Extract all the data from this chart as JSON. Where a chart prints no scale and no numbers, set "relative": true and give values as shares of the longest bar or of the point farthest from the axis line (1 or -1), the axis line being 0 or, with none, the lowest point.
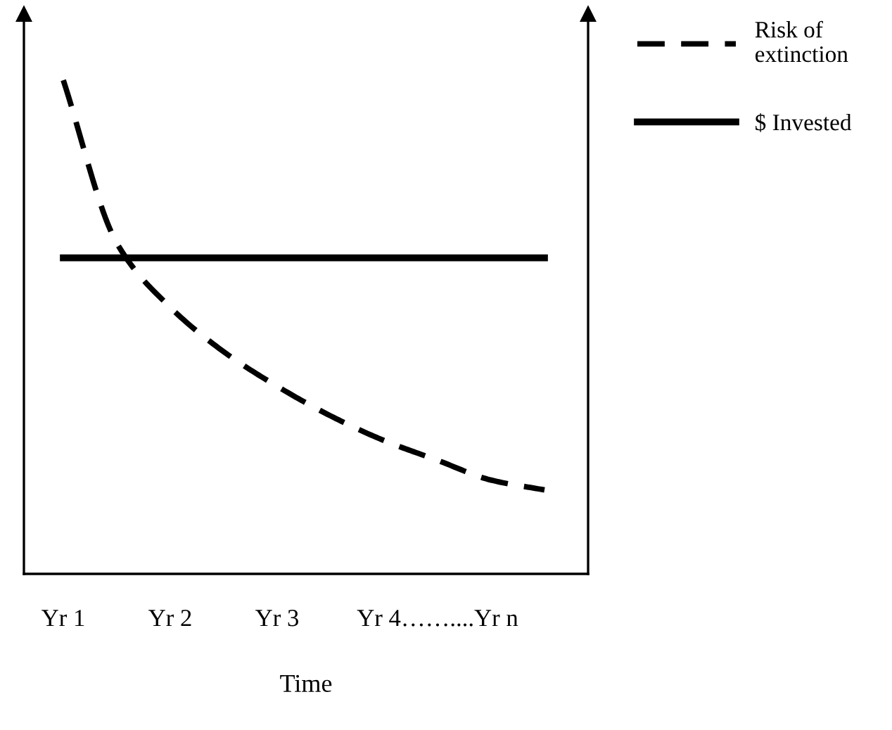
{
  "chart_data": {
    "type": "line",
    "relative": true,
    "xlabel": "Time",
    "legend": "top right",
    "grid": false,
    "marker": "none",
    "categories": [
      "Yr 1",
      null,
      "Yr 2",
      null,
      "Yr 3",
      null,
      null,
      "Yr 4……....Yr n",
      null,
      null
    ],
    "series": [
      {
        "name": "Risk of\nextinction",
        "color": "#000000",
        "line_style": "dashed",
        "values": [
          1,
          0.67,
          0.54,
          0.45,
          0.38,
          0.32,
          0.27,
          0.23,
          0.19,
          0.17
        ]
      },
      {
        "name": "$ Invested",
        "color": "#000000",
        "line_style": "solid",
        "values": [
          0.64,
          0.64,
          0.64,
          0.64,
          0.64,
          0.64,
          0.64,
          0.64,
          0.64,
          0.64
        ]
      }
    ]
  }
}
